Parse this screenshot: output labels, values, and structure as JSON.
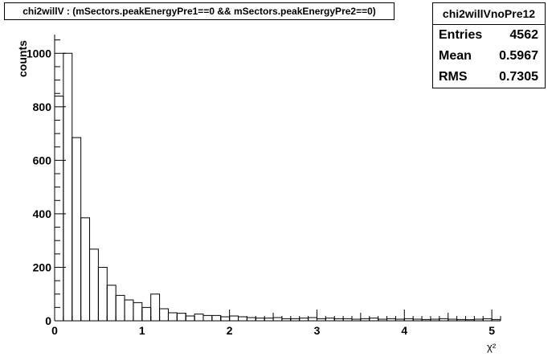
{
  "chart_data": {
    "type": "histogram",
    "title": "chi2willV : (mSectors.peakEnergyPre1==0 && mSectors.peakEnergyPre2==0)",
    "xlabel": "χ²",
    "ylabel": "counts",
    "xlim": [
      0,
      5.1
    ],
    "ylim": [
      0,
      1070
    ],
    "x_ticks": [
      0,
      1,
      2,
      3,
      4,
      5
    ],
    "y_ticks": [
      0,
      200,
      400,
      600,
      800,
      1000
    ],
    "bin_width": 0.1,
    "bins_start": -0.1,
    "values": [
      50,
      840,
      1000,
      685,
      385,
      268,
      200,
      133,
      95,
      78,
      68,
      50,
      100,
      45,
      30,
      28,
      18,
      25,
      20,
      20,
      15,
      18,
      15,
      12,
      10,
      10,
      12,
      8,
      8,
      10,
      12,
      8,
      10,
      8,
      8,
      6,
      8,
      10,
      6,
      8,
      6,
      8,
      6,
      5,
      6,
      8,
      6,
      5,
      4,
      6,
      8,
      5,
      6
    ]
  },
  "stats": {
    "name": "chi2willVnoPre12",
    "entries_label": "Entries",
    "entries": "4562",
    "mean_label": "Mean",
    "mean": "0.5967",
    "rms_label": "RMS",
    "rms": "0.7305"
  }
}
